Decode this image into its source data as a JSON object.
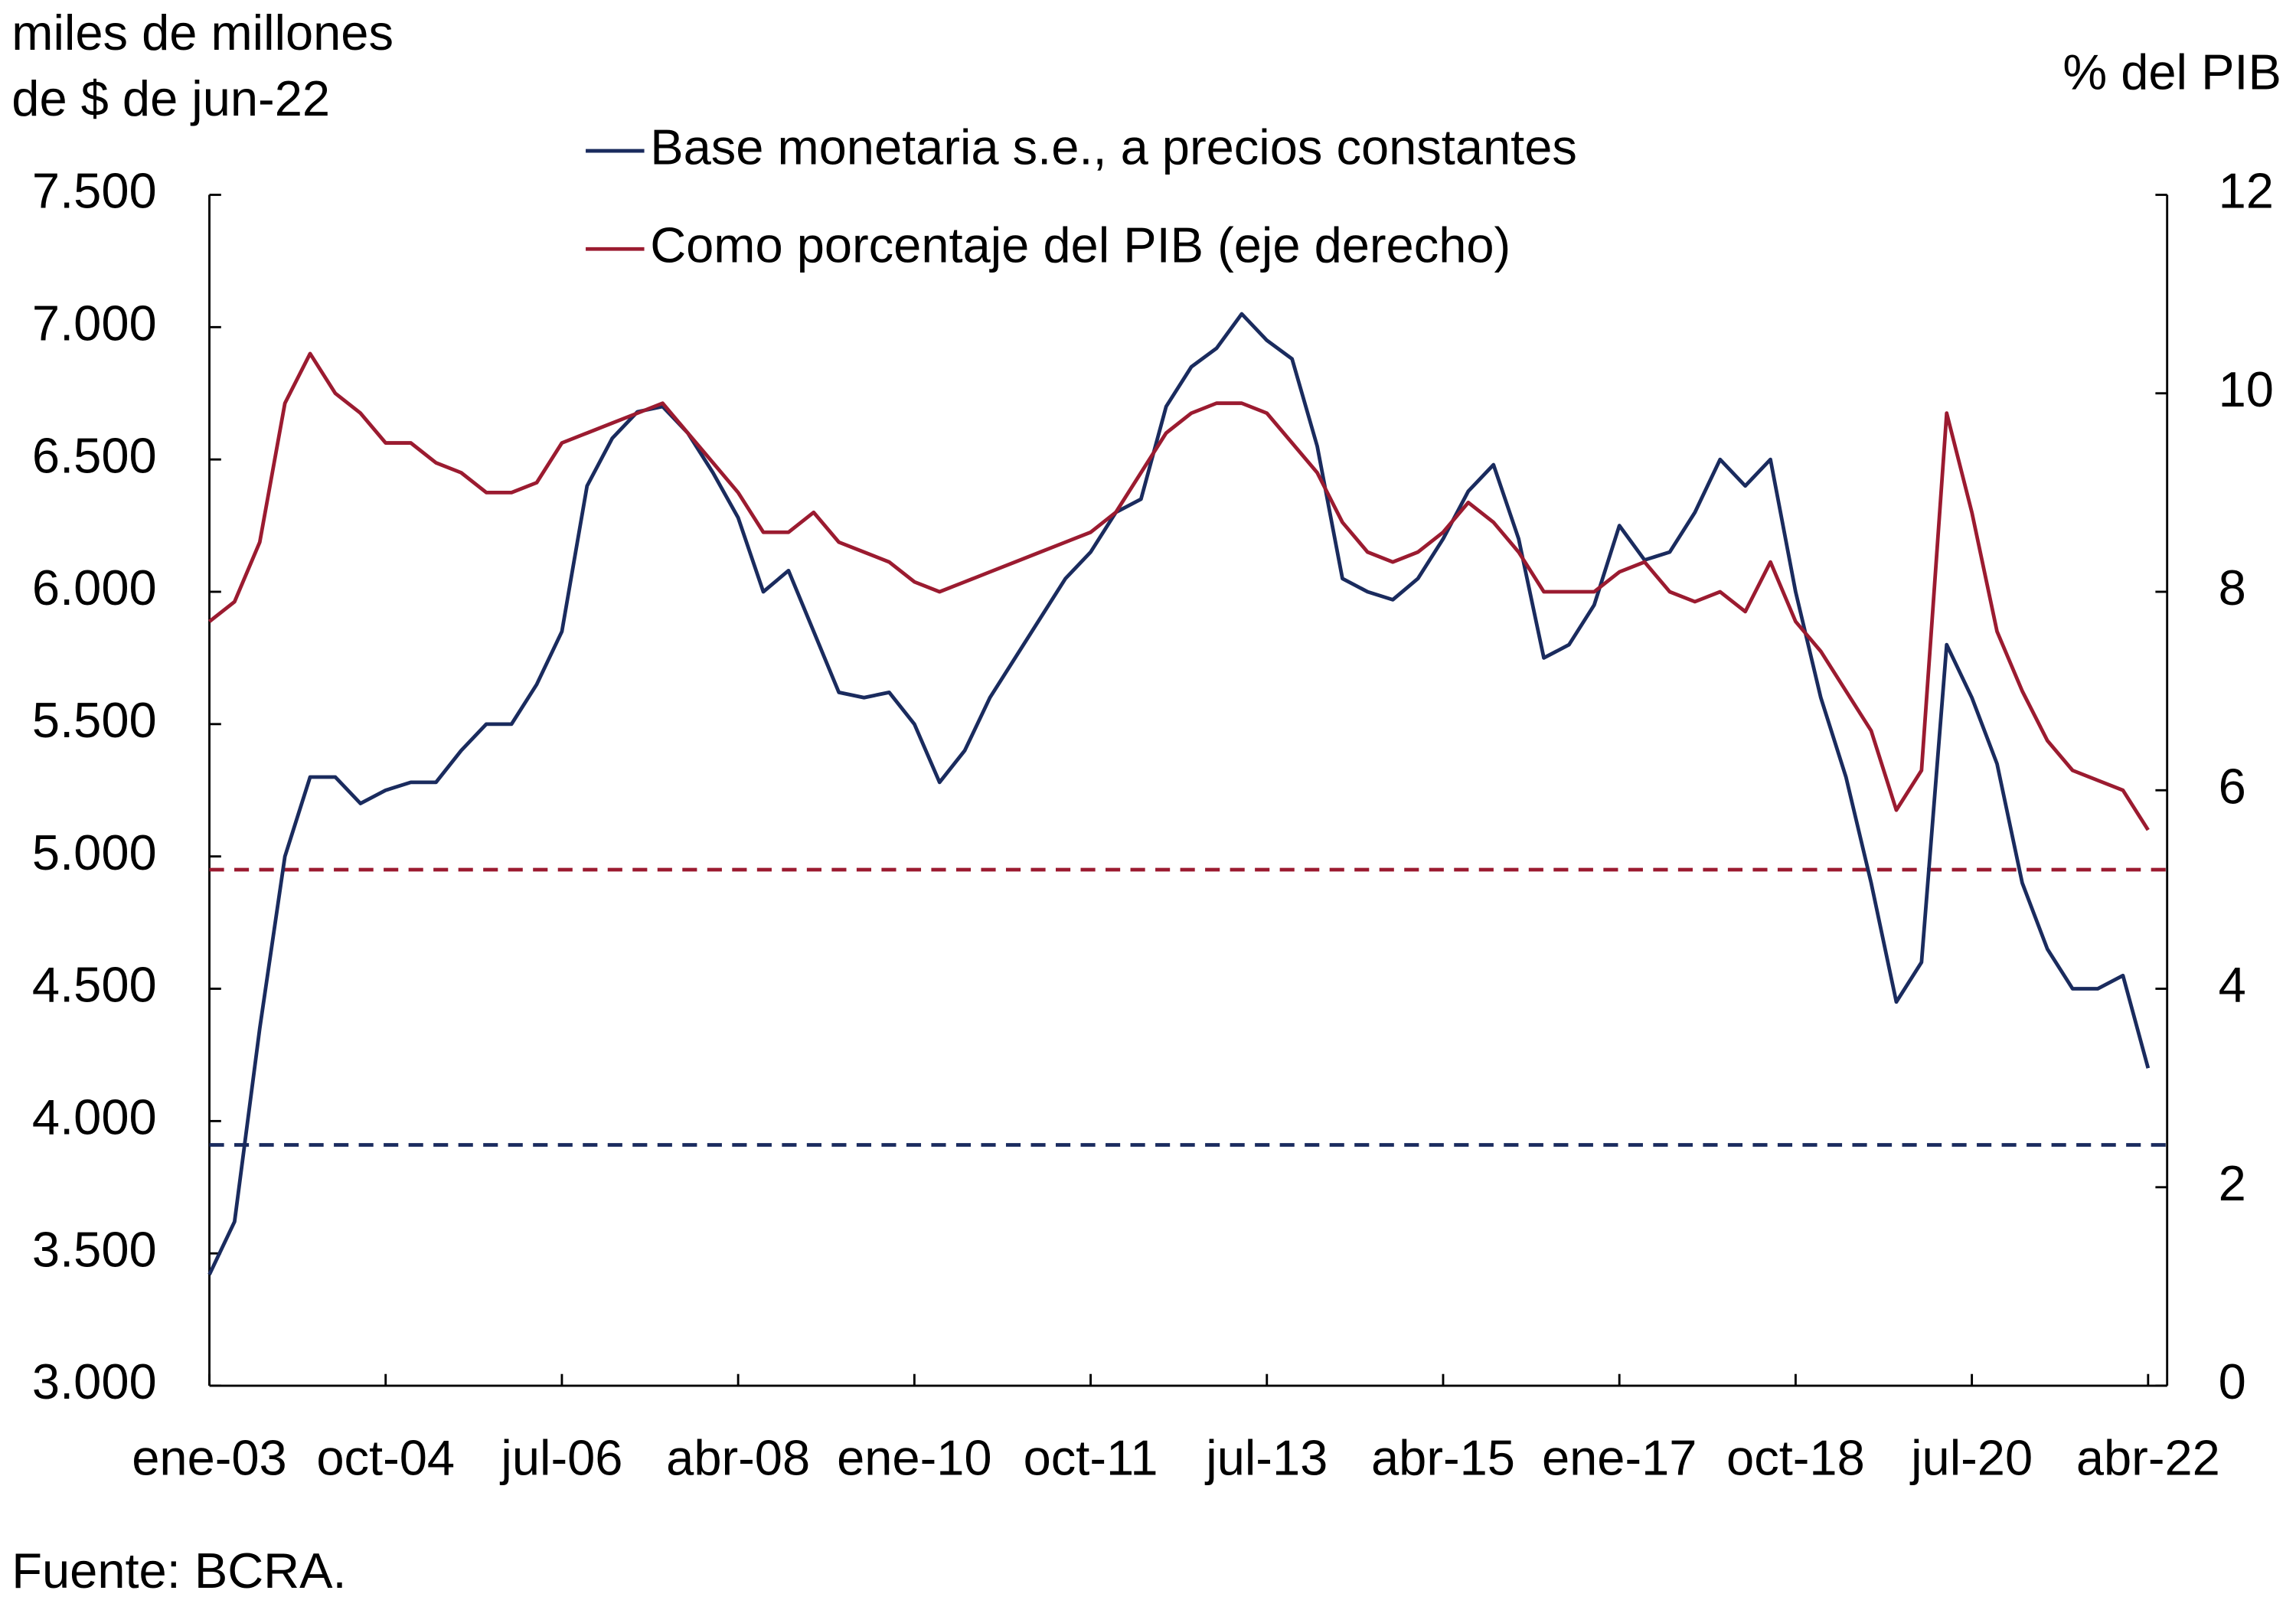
{
  "chart_data": {
    "type": "line",
    "ylabel": [
      "miles de millones",
      "de $ de jun-22"
    ],
    "y2label": "% del PIB",
    "source": "Fuente: BCRA.",
    "categories": [
      "ene-03",
      null,
      null,
      null,
      null,
      null,
      null,
      "oct-04",
      null,
      null,
      null,
      null,
      null,
      null,
      "jul-06",
      null,
      null,
      null,
      null,
      null,
      null,
      "abr-08",
      null,
      null,
      null,
      null,
      null,
      null,
      "ene-10",
      null,
      null,
      null,
      null,
      null,
      null,
      "oct-11",
      null,
      null,
      null,
      null,
      null,
      null,
      "jul-13",
      null,
      null,
      null,
      null,
      null,
      null,
      "abr-15",
      null,
      null,
      null,
      null,
      null,
      null,
      "ene-17",
      null,
      null,
      null,
      null,
      null,
      null,
      "oct-18",
      null,
      null,
      null,
      null,
      null,
      null,
      "jul-20",
      null,
      null,
      null,
      null,
      null,
      null,
      "abr-22"
    ],
    "series": [
      {
        "name": "Base monetaria s.e., a precios constantes",
        "color": "#1a2b5e",
        "values": [
          3420,
          3620,
          4350,
          5000,
          5300,
          5300,
          5200,
          5250,
          5280,
          5280,
          5400,
          5500,
          5500,
          5650,
          5850,
          6400,
          6580,
          6680,
          6700,
          6600,
          6450,
          6280,
          6000,
          6080,
          5850,
          5620,
          5600,
          5620,
          5500,
          5280,
          5400,
          5600,
          5750,
          5900,
          6050,
          6150,
          6300,
          6350,
          6700,
          6850,
          6920,
          7050,
          6950,
          6880,
          6550,
          6050,
          6000,
          5970,
          6050,
          6200,
          6380,
          6480,
          6200,
          5750,
          5800,
          5950,
          6250,
          6120,
          6150,
          6300,
          6500,
          6400,
          6500,
          6000,
          5600,
          5300,
          4900,
          4450,
          4600,
          5800,
          5600,
          5350,
          4900,
          4650,
          4500,
          4500,
          4550,
          4200
        ]
      },
      {
        "name": "Como porcentaje del PIB (eje derecho)",
        "color": "#9b1b30",
        "axis": "y2",
        "values": [
          7.7,
          7.9,
          8.5,
          9.9,
          10.4,
          10.0,
          9.8,
          9.5,
          9.5,
          9.3,
          9.2,
          9.0,
          9.0,
          9.1,
          9.5,
          9.6,
          9.7,
          9.8,
          9.9,
          9.6,
          9.3,
          9.0,
          8.6,
          8.6,
          8.8,
          8.5,
          8.4,
          8.3,
          8.1,
          8.0,
          8.1,
          8.2,
          8.3,
          8.4,
          8.5,
          8.6,
          8.8,
          9.2,
          9.6,
          9.8,
          9.9,
          9.9,
          9.8,
          9.5,
          9.2,
          8.7,
          8.4,
          8.3,
          8.4,
          8.6,
          8.9,
          8.7,
          8.4,
          8.0,
          8.0,
          8.0,
          8.2,
          8.3,
          8.0,
          7.9,
          8.0,
          7.8,
          8.3,
          7.7,
          7.4,
          7.0,
          6.6,
          5.8,
          6.2,
          9.8,
          8.8,
          7.6,
          7.0,
          6.5,
          6.2,
          6.1,
          6.0,
          5.6
        ]
      }
    ],
    "hlines": [
      {
        "value": 3910,
        "color": "#1a2b5e"
      },
      {
        "value": 5.2,
        "color": "#9b1b30",
        "axis": "y2"
      }
    ],
    "ylim": [
      3000,
      7500
    ],
    "yticks": [
      {
        "value": 3000,
        "label": "3.000"
      },
      {
        "value": 3500,
        "label": "3.500"
      },
      {
        "value": 4000,
        "label": "4.000"
      },
      {
        "value": 4500,
        "label": "4.500"
      },
      {
        "value": 5000,
        "label": "5.000"
      },
      {
        "value": 5500,
        "label": "5.500"
      },
      {
        "value": 6000,
        "label": "6.000"
      },
      {
        "value": 6500,
        "label": "6.500"
      },
      {
        "value": 7000,
        "label": "7.000"
      },
      {
        "value": 7500,
        "label": "7.500"
      }
    ],
    "y2lim": [
      0,
      12
    ],
    "y2ticks": [
      0,
      2,
      4,
      6,
      8,
      10,
      12
    ]
  }
}
